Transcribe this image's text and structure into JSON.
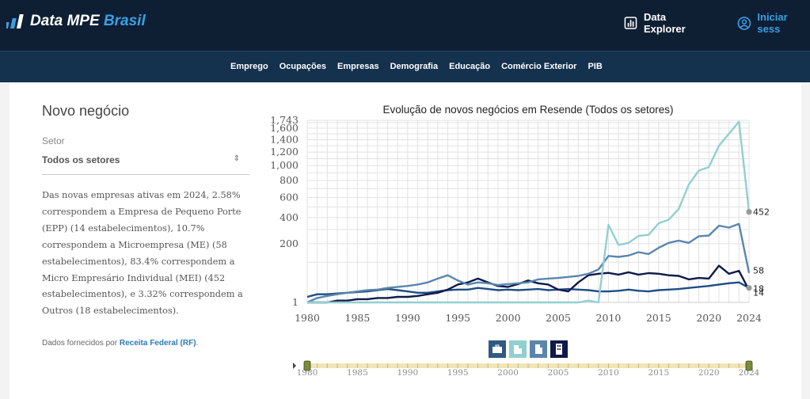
{
  "header": {
    "brand_part1": "Data MPE ",
    "brand_part2": "Brasil",
    "data_explorer": "Data Explorer",
    "login": "Iniciar sess"
  },
  "nav": [
    "Emprego",
    "Ocupações",
    "Empresas",
    "Demografia",
    "Educação",
    "Comércio Exterior",
    "PIB"
  ],
  "panel": {
    "title": "Novo negócio",
    "sector_label": "Setor",
    "sector_value": "Todos os setores",
    "description": "Das novas empresas ativas em 2024, 2.58% correspondem a Empresa de Pequeno Porte (EPP) (14 estabelecimentos), 10.7% correspondem a Microempresa (ME) (58 estabelecimentos), 83.4% correspondem a Micro Empresário Individual (MEI) (452 estabelecimentos), e 3.32% correspondem a Outros (18 estabelecimentos).",
    "source_prefix": "Dados fornecidos por ",
    "source_link": "Receita Federal (RF)",
    "source_suffix": "."
  },
  "colors": {
    "mei": "#92cfd0",
    "me": "#5a86ad",
    "epp": "#0e1a4a",
    "outros": "#1f4d86",
    "slider_track": "#efe5b8",
    "slider_handle": "#7a8c3a"
  },
  "controls": [
    {
      "name": "briefcase",
      "color": "#2f5a82"
    },
    {
      "name": "small-building",
      "color": "#92cfd0"
    },
    {
      "name": "medium-building",
      "color": "#5a86ad"
    },
    {
      "name": "tall-building",
      "color": "#0e1a4a"
    }
  ],
  "chart_data": {
    "type": "line",
    "title": "Evolução de novos negócios em Resende (Todos os setores)",
    "y_scale": "sqrt",
    "ylim": [
      1,
      1743
    ],
    "yticks": [
      1,
      200,
      400,
      600,
      800,
      1000,
      1200,
      1400,
      1600,
      1743
    ],
    "ytick_labels": [
      "1",
      "200",
      "400",
      "600",
      "800",
      "1,000",
      "1,200",
      "1,400",
      "1,600",
      "1,743"
    ],
    "xticks": [
      1980,
      1985,
      1990,
      1995,
      2000,
      2005,
      2010,
      2015,
      2020,
      2024
    ],
    "x": [
      1980,
      1981,
      1982,
      1983,
      1984,
      1985,
      1986,
      1987,
      1988,
      1989,
      1990,
      1991,
      1992,
      1993,
      1994,
      1995,
      1996,
      1997,
      1998,
      1999,
      2000,
      2001,
      2002,
      2003,
      2004,
      2005,
      2006,
      2007,
      2008,
      2009,
      2010,
      2011,
      2012,
      2013,
      2014,
      2015,
      2016,
      2017,
      2018,
      2019,
      2020,
      2021,
      2022,
      2023,
      2024
    ],
    "series": [
      {
        "key": "mei",
        "values": [
          1,
          1,
          1,
          1,
          1,
          1,
          1,
          1,
          1,
          1,
          1,
          1,
          1,
          1,
          1,
          1,
          1,
          1,
          1,
          1,
          1,
          1,
          1,
          1,
          1,
          1,
          1,
          1,
          2,
          1,
          337,
          192,
          205,
          252,
          260,
          350,
          380,
          480,
          750,
          930,
          980,
          1300,
          1500,
          1720,
          452
        ],
        "end_label": "452"
      },
      {
        "key": "me",
        "values": [
          1,
          4,
          6,
          8,
          10,
          12,
          14,
          15,
          18,
          20,
          22,
          25,
          30,
          40,
          50,
          35,
          25,
          30,
          28,
          24,
          26,
          28,
          30,
          38,
          40,
          42,
          45,
          48,
          55,
          70,
          130,
          125,
          132,
          150,
          140,
          175,
          205,
          220,
          205,
          250,
          255,
          330,
          315,
          345,
          58
        ],
        "end_label": "58"
      },
      {
        "key": "epp",
        "values": [
          1,
          1,
          1,
          2,
          2,
          3,
          3,
          4,
          4,
          5,
          5,
          6,
          8,
          10,
          15,
          25,
          30,
          40,
          30,
          22,
          20,
          26,
          35,
          28,
          25,
          15,
          12,
          30,
          50,
          55,
          58,
          52,
          60,
          52,
          57,
          55,
          50,
          48,
          38,
          42,
          40,
          85,
          55,
          65,
          14
        ],
        "end_label": "14"
      },
      {
        "key": "outros",
        "values": [
          5,
          8,
          8,
          9,
          10,
          11,
          12,
          14,
          16,
          14,
          12,
          10,
          10,
          12,
          14,
          15,
          15,
          18,
          16,
          14,
          15,
          14,
          15,
          16,
          14,
          15,
          16,
          15,
          14,
          12,
          12,
          13,
          15,
          13,
          12,
          14,
          15,
          16,
          18,
          20,
          22,
          25,
          28,
          30,
          18
        ],
        "end_label": "18"
      }
    ],
    "slider": {
      "start": 1980,
      "end": 2024,
      "ticks": [
        1980,
        1985,
        1990,
        1995,
        2000,
        2005,
        2010,
        2015,
        2020,
        2024
      ]
    }
  }
}
